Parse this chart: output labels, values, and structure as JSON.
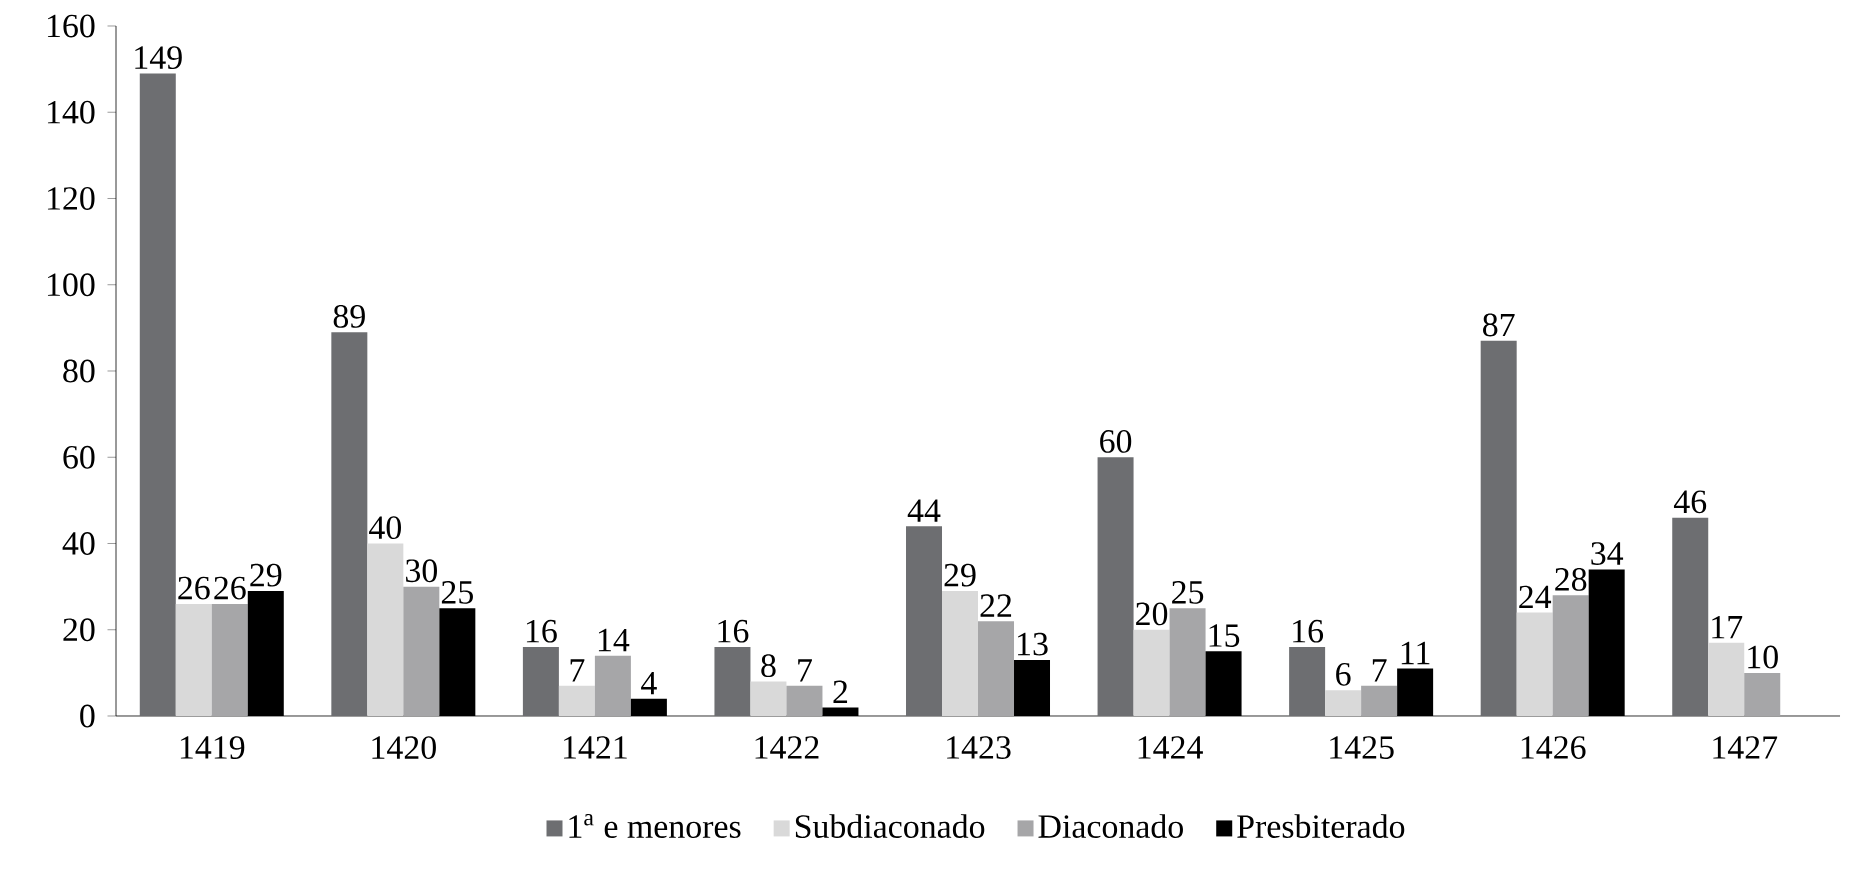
{
  "chart_data": {
    "type": "bar",
    "categories": [
      "1419",
      "1420",
      "1421",
      "1422",
      "1423",
      "1424",
      "1425",
      "1426",
      "1427"
    ],
    "series": [
      {
        "name": "1$^{a}$ e menores",
        "color": "#6d6e71",
        "values": [
          149,
          89,
          16,
          16,
          44,
          60,
          16,
          87,
          46
        ]
      },
      {
        "name": "Subdiaconado",
        "color": "#d9d9d9",
        "values": [
          26,
          40,
          7,
          8,
          29,
          20,
          6,
          24,
          17
        ]
      },
      {
        "name": "Diaconado",
        "color": "#a6a6a8",
        "values": [
          26,
          30,
          14,
          7,
          22,
          25,
          7,
          28,
          10
        ]
      },
      {
        "name": "Presbiterado",
        "color": "#000000",
        "values": [
          29,
          25,
          4,
          2,
          13,
          15,
          11,
          34,
          null
        ]
      }
    ],
    "ylim": [
      0,
      160
    ],
    "yticks": [
      0,
      20,
      40,
      60,
      80,
      100,
      120,
      140,
      160
    ],
    "grid": false,
    "legend": "bottom",
    "data_labels": true
  }
}
